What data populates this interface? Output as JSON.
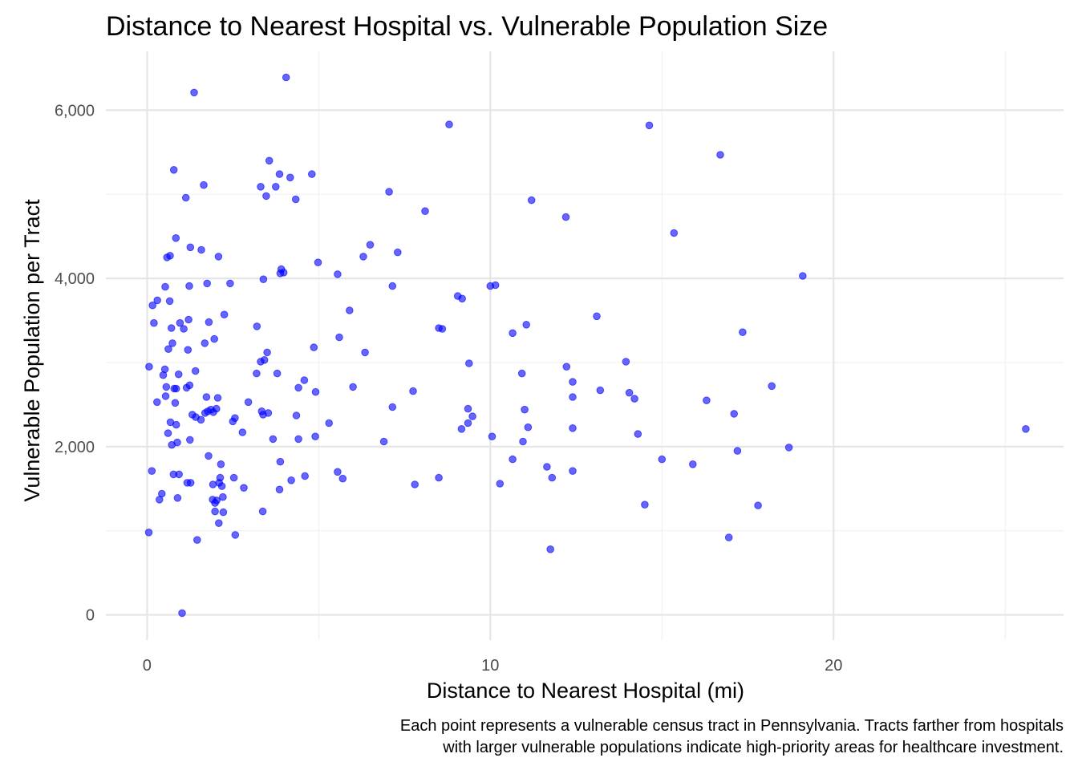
{
  "chart_data": {
    "type": "scatter",
    "title": "Distance to Nearest Hospital vs. Vulnerable Population Size",
    "xlabel": "Distance to Nearest Hospital (mi)",
    "ylabel": "Vulnerable Population per Tract",
    "caption": [
      "Each point represents a vulnerable census tract in Pennsylvania. Tracts farther from hospitals",
      "with larger vulnerable populations indicate high-priority areas for healthcare investment."
    ],
    "xlim": [
      -1.2,
      26.7
    ],
    "ylim": [
      -300,
      6700
    ],
    "x_ticks": [
      0,
      10,
      20
    ],
    "x_tick_labels": [
      "0",
      "10",
      "20"
    ],
    "y_ticks": [
      0,
      2000,
      4000,
      6000
    ],
    "y_tick_labels": [
      "0",
      "2,000",
      "4,000",
      "6,000"
    ],
    "x_minor": [
      5,
      15,
      25
    ],
    "y_minor": [
      1000,
      3000,
      5000
    ],
    "grid": true,
    "point_color": "#0000ff",
    "point_alpha": 0.6,
    "points": [
      [
        4.05,
        6390
      ],
      [
        1.37,
        6210
      ],
      [
        8.8,
        5830
      ],
      [
        14.63,
        5820
      ],
      [
        16.7,
        5470
      ],
      [
        3.56,
        5400
      ],
      [
        0.78,
        5290
      ],
      [
        3.86,
        5240
      ],
      [
        4.17,
        5200
      ],
      [
        4.8,
        5240
      ],
      [
        1.65,
        5110
      ],
      [
        3.31,
        5090
      ],
      [
        3.75,
        5090
      ],
      [
        3.47,
        4980
      ],
      [
        1.13,
        4960
      ],
      [
        4.33,
        4940
      ],
      [
        7.05,
        5030
      ],
      [
        11.2,
        4930
      ],
      [
        8.1,
        4800
      ],
      [
        12.2,
        4730
      ],
      [
        15.35,
        4540
      ],
      [
        0.84,
        4480
      ],
      [
        1.26,
        4370
      ],
      [
        1.58,
        4340
      ],
      [
        0.58,
        4250
      ],
      [
        0.67,
        4270
      ],
      [
        2.08,
        4260
      ],
      [
        6.5,
        4400
      ],
      [
        6.3,
        4260
      ],
      [
        7.3,
        4310
      ],
      [
        4.98,
        4190
      ],
      [
        3.91,
        4110
      ],
      [
        3.88,
        4060
      ],
      [
        3.98,
        4070
      ],
      [
        5.55,
        4050
      ],
      [
        3.39,
        3990
      ],
      [
        0.53,
        3900
      ],
      [
        1.23,
        3910
      ],
      [
        1.75,
        3940
      ],
      [
        2.42,
        3940
      ],
      [
        7.15,
        3910
      ],
      [
        10.0,
        3910
      ],
      [
        10.15,
        3920
      ],
      [
        19.1,
        4030
      ],
      [
        9.05,
        3790
      ],
      [
        9.18,
        3760
      ],
      [
        0.3,
        3740
      ],
      [
        0.66,
        3730
      ],
      [
        0.16,
        3680
      ],
      [
        5.9,
        3620
      ],
      [
        2.25,
        3570
      ],
      [
        1.21,
        3510
      ],
      [
        13.1,
        3550
      ],
      [
        0.96,
        3470
      ],
      [
        1.8,
        3480
      ],
      [
        0.2,
        3470
      ],
      [
        3.2,
        3430
      ],
      [
        11.05,
        3450
      ],
      [
        8.5,
        3410
      ],
      [
        8.6,
        3400
      ],
      [
        0.71,
        3410
      ],
      [
        1.07,
        3400
      ],
      [
        10.65,
        3350
      ],
      [
        17.35,
        3360
      ],
      [
        1.96,
        3280
      ],
      [
        5.6,
        3300
      ],
      [
        0.74,
        3230
      ],
      [
        1.68,
        3230
      ],
      [
        0.62,
        3160
      ],
      [
        1.19,
        3150
      ],
      [
        4.86,
        3180
      ],
      [
        3.5,
        3120
      ],
      [
        6.35,
        3120
      ],
      [
        3.42,
        3030
      ],
      [
        3.31,
        3010
      ],
      [
        9.38,
        2990
      ],
      [
        13.95,
        3010
      ],
      [
        0.06,
        2950
      ],
      [
        12.22,
        2950
      ],
      [
        0.52,
        2920
      ],
      [
        0.47,
        2850
      ],
      [
        0.92,
        2860
      ],
      [
        1.41,
        2900
      ],
      [
        3.19,
        2870
      ],
      [
        3.79,
        2870
      ],
      [
        10.92,
        2870
      ],
      [
        4.58,
        2790
      ],
      [
        12.4,
        2770
      ],
      [
        0.56,
        2710
      ],
      [
        0.79,
        2690
      ],
      [
        0.85,
        2690
      ],
      [
        1.15,
        2700
      ],
      [
        1.24,
        2730
      ],
      [
        4.41,
        2700
      ],
      [
        6.0,
        2710
      ],
      [
        18.2,
        2720
      ],
      [
        4.91,
        2650
      ],
      [
        7.75,
        2660
      ],
      [
        13.2,
        2670
      ],
      [
        14.05,
        2640
      ],
      [
        1.73,
        2590
      ],
      [
        2.06,
        2580
      ],
      [
        0.54,
        2600
      ],
      [
        12.4,
        2590
      ],
      [
        14.2,
        2570
      ],
      [
        16.3,
        2550
      ],
      [
        0.29,
        2530
      ],
      [
        2.95,
        2530
      ],
      [
        0.82,
        2520
      ],
      [
        7.15,
        2470
      ],
      [
        9.35,
        2450
      ],
      [
        11.0,
        2440
      ],
      [
        1.86,
        2440
      ],
      [
        1.93,
        2410
      ],
      [
        2.02,
        2450
      ],
      [
        1.69,
        2400
      ],
      [
        1.77,
        2420
      ],
      [
        1.32,
        2380
      ],
      [
        1.42,
        2350
      ],
      [
        1.57,
        2320
      ],
      [
        3.34,
        2420
      ],
      [
        3.53,
        2400
      ],
      [
        3.38,
        2380
      ],
      [
        4.35,
        2370
      ],
      [
        9.48,
        2360
      ],
      [
        17.1,
        2390
      ],
      [
        2.56,
        2340
      ],
      [
        2.5,
        2300
      ],
      [
        0.68,
        2290
      ],
      [
        0.85,
        2260
      ],
      [
        5.3,
        2280
      ],
      [
        9.35,
        2280
      ],
      [
        11.1,
        2230
      ],
      [
        12.4,
        2220
      ],
      [
        9.16,
        2210
      ],
      [
        0.61,
        2160
      ],
      [
        2.78,
        2170
      ],
      [
        4.9,
        2120
      ],
      [
        10.05,
        2120
      ],
      [
        14.3,
        2150
      ],
      [
        25.6,
        2210
      ],
      [
        1.25,
        2080
      ],
      [
        3.67,
        2090
      ],
      [
        4.41,
        2090
      ],
      [
        0.88,
        2050
      ],
      [
        6.9,
        2060
      ],
      [
        10.95,
        2060
      ],
      [
        0.72,
        2020
      ],
      [
        17.2,
        1950
      ],
      [
        18.7,
        1990
      ],
      [
        1.79,
        1890
      ],
      [
        10.65,
        1850
      ],
      [
        15.0,
        1850
      ],
      [
        15.9,
        1790
      ],
      [
        2.15,
        1790
      ],
      [
        11.65,
        1760
      ],
      [
        0.14,
        1710
      ],
      [
        12.4,
        1710
      ],
      [
        5.55,
        1700
      ],
      [
        0.77,
        1670
      ],
      [
        0.93,
        1670
      ],
      [
        2.53,
        1630
      ],
      [
        2.13,
        1630
      ],
      [
        4.6,
        1650
      ],
      [
        5.7,
        1620
      ],
      [
        8.5,
        1630
      ],
      [
        11.8,
        1630
      ],
      [
        1.17,
        1570
      ],
      [
        1.27,
        1570
      ],
      [
        2.1,
        1570
      ],
      [
        1.92,
        1550
      ],
      [
        2.18,
        1530
      ],
      [
        2.82,
        1510
      ],
      [
        7.8,
        1550
      ],
      [
        10.28,
        1560
      ],
      [
        3.88,
        1820
      ],
      [
        3.86,
        1490
      ],
      [
        4.2,
        1600
      ],
      [
        0.43,
        1440
      ],
      [
        0.36,
        1370
      ],
      [
        0.89,
        1390
      ],
      [
        1.91,
        1370
      ],
      [
        2.03,
        1360
      ],
      [
        2.21,
        1400
      ],
      [
        1.98,
        1330
      ],
      [
        3.37,
        1230
      ],
      [
        1.98,
        1230
      ],
      [
        2.22,
        1220
      ],
      [
        14.5,
        1310
      ],
      [
        17.8,
        1300
      ],
      [
        2.09,
        1090
      ],
      [
        2.57,
        950
      ],
      [
        0.05,
        980
      ],
      [
        1.46,
        890
      ],
      [
        16.95,
        920
      ],
      [
        11.75,
        780
      ],
      [
        1.02,
        20
      ]
    ]
  }
}
